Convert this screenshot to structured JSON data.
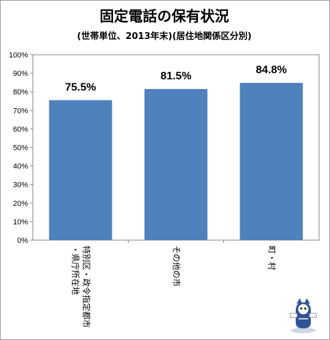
{
  "chart_data": {
    "type": "bar",
    "title": "固定電話の保有状況",
    "subtitle": "(世帯単位、2013年末)(居住地関係区分別)",
    "categories": [
      [
        "特別区・政令指定都市",
        "・県庁所在地"
      ],
      [
        "その他の市"
      ],
      [
        "町・村"
      ]
    ],
    "values": [
      75.5,
      81.5,
      84.8
    ],
    "data_labels": [
      "75.5%",
      "81.5%",
      "84.8%"
    ],
    "ylim": [
      0,
      100
    ],
    "yticks": [
      "0%",
      "10%",
      "20%",
      "30%",
      "40%",
      "50%",
      "60%",
      "70%",
      "80%",
      "90%",
      "100%"
    ],
    "grid": false,
    "bar_color": "#4f81bd"
  }
}
